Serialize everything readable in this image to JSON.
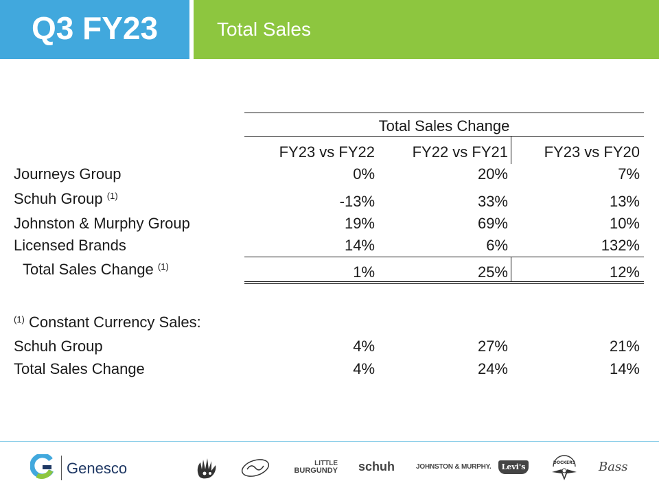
{
  "header": {
    "quarter": "Q3 FY23",
    "section": "Total Sales"
  },
  "table": {
    "group_header": "Total Sales Change",
    "columns": [
      "FY23 vs FY22",
      "FY22 vs FY21",
      "FY23 vs FY20"
    ],
    "rows": [
      {
        "label": "Journeys Group",
        "note": "",
        "values": [
          "0%",
          "20%",
          "7%"
        ]
      },
      {
        "label": "Schuh Group",
        "note": "(1)",
        "values": [
          "-13%",
          "33%",
          "13%"
        ]
      },
      {
        "label": "Johnston & Murphy Group",
        "note": "",
        "values": [
          "19%",
          "69%",
          "10%"
        ]
      },
      {
        "label": "Licensed Brands",
        "note": "",
        "values": [
          "14%",
          "6%",
          "132%"
        ]
      }
    ],
    "total": {
      "label": "Total Sales Change",
      "note": "(1)",
      "values": [
        "1%",
        "25%",
        "12%"
      ]
    }
  },
  "footnote": {
    "marker": "(1)",
    "title": "Constant Currency Sales:",
    "rows": [
      {
        "label": "Schuh Group",
        "values": [
          "4%",
          "27%",
          "21%"
        ]
      },
      {
        "label": "Total Sales Change",
        "values": [
          "4%",
          "24%",
          "14%"
        ]
      }
    ]
  },
  "footer": {
    "company": "Genesco",
    "brands": [
      "LITTLE",
      "BURGUNDY",
      "schuh",
      "JOHNSTON & MURPHY.",
      "Levi's",
      "DOCKERS",
      "Bass"
    ]
  },
  "colors": {
    "header_blue": "#41a8dd",
    "header_green": "#8dc63f",
    "footer_line": "#8ecfe9"
  }
}
